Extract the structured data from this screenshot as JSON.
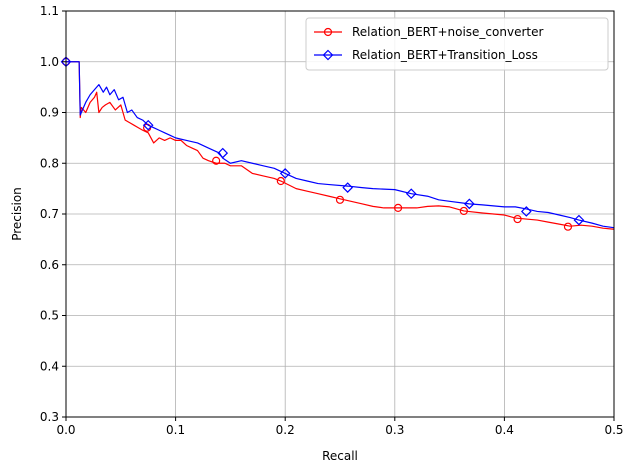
{
  "chart_data": {
    "type": "line",
    "xlabel": "Recall",
    "ylabel": "Precision",
    "xlim": [
      0.0,
      0.5
    ],
    "ylim": [
      0.3,
      1.1
    ],
    "xticks": [
      0.0,
      0.1,
      0.2,
      0.3,
      0.4,
      0.5
    ],
    "xtick_labels": [
      "0.0",
      "0.1",
      "0.2",
      "0.3",
      "0.4",
      "0.5"
    ],
    "yticks": [
      0.3,
      0.4,
      0.5,
      0.6,
      0.7,
      0.8,
      0.9,
      1.0,
      1.1
    ],
    "ytick_labels": [
      "0.3",
      "0.4",
      "0.5",
      "0.6",
      "0.7",
      "0.8",
      "0.9",
      "1.0",
      "1.1"
    ],
    "grid": true,
    "legend_position": "upper-right",
    "series": [
      {
        "name": "Relation_BERT+noise_converter",
        "color": "#ff0000",
        "marker": "circle",
        "x": [
          0.0,
          0.003,
          0.006,
          0.012,
          0.013,
          0.014,
          0.018,
          0.022,
          0.026,
          0.028,
          0.03,
          0.033,
          0.036,
          0.04,
          0.045,
          0.05,
          0.054,
          0.058,
          0.062,
          0.066,
          0.07,
          0.075,
          0.08,
          0.085,
          0.09,
          0.095,
          0.1,
          0.105,
          0.11,
          0.115,
          0.12,
          0.125,
          0.13,
          0.137,
          0.145,
          0.15,
          0.16,
          0.17,
          0.18,
          0.19,
          0.196,
          0.21,
          0.22,
          0.23,
          0.24,
          0.25,
          0.26,
          0.27,
          0.28,
          0.29,
          0.303,
          0.32,
          0.33,
          0.34,
          0.35,
          0.363,
          0.38,
          0.39,
          0.4,
          0.41,
          0.42,
          0.43,
          0.44,
          0.45,
          0.46,
          0.47,
          0.48,
          0.49,
          0.5
        ],
        "y": [
          1.0,
          1.0,
          1.0,
          1.0,
          0.89,
          0.91,
          0.9,
          0.92,
          0.93,
          0.94,
          0.9,
          0.91,
          0.915,
          0.92,
          0.905,
          0.915,
          0.885,
          0.88,
          0.875,
          0.87,
          0.865,
          0.86,
          0.84,
          0.85,
          0.845,
          0.85,
          0.845,
          0.845,
          0.835,
          0.83,
          0.825,
          0.81,
          0.805,
          0.8,
          0.8,
          0.795,
          0.795,
          0.78,
          0.775,
          0.77,
          0.765,
          0.75,
          0.745,
          0.74,
          0.735,
          0.73,
          0.725,
          0.72,
          0.715,
          0.712,
          0.712,
          0.712,
          0.715,
          0.716,
          0.714,
          0.706,
          0.702,
          0.7,
          0.698,
          0.692,
          0.69,
          0.688,
          0.684,
          0.68,
          0.676,
          0.678,
          0.676,
          0.672,
          0.67
        ],
        "marker_x": [
          0.0,
          0.074,
          0.137,
          0.196,
          0.25,
          0.303,
          0.363,
          0.412,
          0.458
        ],
        "marker_y": [
          1.0,
          0.87,
          0.805,
          0.765,
          0.728,
          0.712,
          0.706,
          0.69,
          0.675
        ]
      },
      {
        "name": "Relation_BERT+Transition_Loss",
        "color": "#0000ff",
        "marker": "diamond",
        "x": [
          0.0,
          0.003,
          0.006,
          0.012,
          0.013,
          0.014,
          0.018,
          0.022,
          0.026,
          0.03,
          0.034,
          0.037,
          0.04,
          0.044,
          0.048,
          0.052,
          0.056,
          0.06,
          0.065,
          0.07,
          0.075,
          0.08,
          0.085,
          0.09,
          0.095,
          0.1,
          0.11,
          0.12,
          0.13,
          0.14,
          0.143,
          0.15,
          0.16,
          0.17,
          0.18,
          0.19,
          0.2,
          0.21,
          0.22,
          0.23,
          0.24,
          0.257,
          0.27,
          0.28,
          0.3,
          0.315,
          0.33,
          0.34,
          0.35,
          0.368,
          0.38,
          0.39,
          0.4,
          0.41,
          0.42,
          0.43,
          0.44,
          0.45,
          0.46,
          0.468,
          0.48,
          0.49,
          0.5
        ],
        "y": [
          1.0,
          1.0,
          1.0,
          1.0,
          0.895,
          0.9,
          0.92,
          0.935,
          0.945,
          0.955,
          0.94,
          0.95,
          0.935,
          0.945,
          0.925,
          0.93,
          0.9,
          0.905,
          0.89,
          0.885,
          0.875,
          0.87,
          0.865,
          0.86,
          0.855,
          0.85,
          0.845,
          0.84,
          0.83,
          0.82,
          0.81,
          0.8,
          0.805,
          0.8,
          0.795,
          0.79,
          0.78,
          0.77,
          0.765,
          0.76,
          0.758,
          0.755,
          0.752,
          0.75,
          0.748,
          0.74,
          0.735,
          0.728,
          0.725,
          0.72,
          0.718,
          0.716,
          0.714,
          0.714,
          0.71,
          0.705,
          0.703,
          0.698,
          0.693,
          0.688,
          0.682,
          0.676,
          0.673
        ],
        "marker_x": [
          0.0,
          0.075,
          0.143,
          0.2,
          0.257,
          0.315,
          0.368,
          0.42,
          0.468
        ],
        "marker_y": [
          1.0,
          0.875,
          0.82,
          0.78,
          0.752,
          0.74,
          0.72,
          0.705,
          0.688
        ]
      }
    ]
  }
}
